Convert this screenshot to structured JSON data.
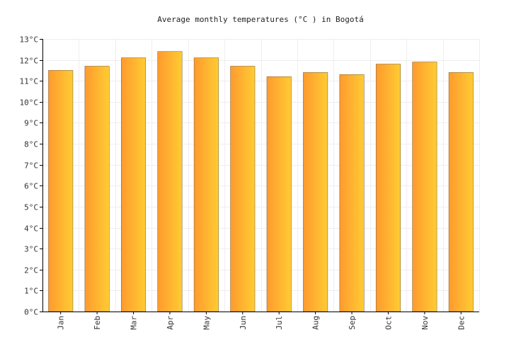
{
  "chart_data": {
    "type": "bar",
    "title": "Average monthly temperatures (°C ) in Bogotá",
    "categories": [
      "Jan",
      "Feb",
      "Mar",
      "Apr",
      "May",
      "Jun",
      "Jul",
      "Aug",
      "Sep",
      "Oct",
      "Nov",
      "Dec"
    ],
    "series": [
      {
        "values": [
          11.5,
          11.7,
          12.1,
          12.4,
          12.1,
          11.7,
          11.2,
          11.4,
          11.3,
          11.8,
          11.9,
          11.4
        ]
      }
    ],
    "ylim": [
      0,
      13
    ],
    "y_ticks": [
      0,
      1,
      2,
      3,
      4,
      5,
      6,
      7,
      8,
      9,
      10,
      11,
      12,
      13
    ],
    "y_tick_suffix": "°C",
    "grid": true,
    "bar_gradient": [
      "#ff9a2e",
      "#ffcc33"
    ],
    "bar_stroke": "#8a6a3a"
  }
}
